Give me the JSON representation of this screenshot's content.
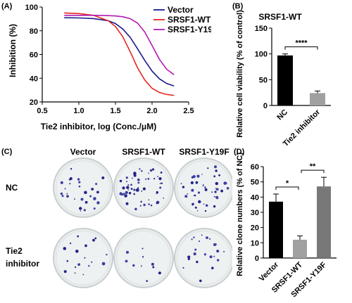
{
  "panels": {
    "A": {
      "label": "(A)",
      "chart_data": {
        "type": "line",
        "xlabel": "Tie2 inhibitor, log (Conc./μM)",
        "ylabel": "Inhibition (%)",
        "xlim": [
          0.5,
          2.5
        ],
        "ylim": [
          20,
          100
        ],
        "xticks": [
          0.5,
          1.0,
          1.5,
          2.0,
          2.5
        ],
        "xtick_labels": [
          "0.5",
          "1.0",
          "1.5",
          "2.0",
          "2.5"
        ],
        "yticks": [
          20,
          40,
          60,
          80,
          100
        ],
        "ytick_labels": [
          "20",
          "40",
          "60",
          "80",
          "100"
        ],
        "legend_position": "top-right",
        "series": [
          {
            "name": "Vector",
            "color": "#1a1a8c",
            "x": [
              0.8,
              1.0,
              1.2,
              1.4,
              1.5,
              1.6,
              1.7,
              1.8,
              1.9,
              2.0,
              2.1,
              2.2,
              2.3
            ],
            "y": [
              91,
              90.8,
              90.3,
              88.5,
              86,
              81.5,
              74.5,
              65,
              55,
              46,
              39.5,
              35.5,
              33.5
            ]
          },
          {
            "name": "SRSF1-WT",
            "color": "#e52620",
            "x": [
              0.8,
              1.0,
              1.2,
              1.4,
              1.5,
              1.6,
              1.7,
              1.8,
              1.9,
              2.0,
              2.1,
              2.2,
              2.3
            ],
            "y": [
              95,
              94.5,
              93,
              88.5,
              83.5,
              75,
              62.5,
              49,
              38.5,
              31.5,
              28,
              26.3,
              25.5
            ]
          },
          {
            "name": "SRSF1-Y19F",
            "color": "#b21ab2",
            "x": [
              0.8,
              1.0,
              1.2,
              1.4,
              1.5,
              1.6,
              1.7,
              1.8,
              1.9,
              2.0,
              2.1,
              2.2,
              2.3
            ],
            "y": [
              93,
              93,
              93,
              92.8,
              92.5,
              91.8,
              90.2,
              86.5,
              79,
              67.5,
              56,
              47.5,
              43
            ]
          }
        ]
      }
    },
    "B": {
      "label": "(B)",
      "chart_data": {
        "type": "bar",
        "title": "SRSF1-WT",
        "ylabel": "Relative cell viability (% of control)",
        "ylim": [
          0,
          150
        ],
        "yticks": [
          0,
          50,
          100,
          150
        ],
        "ytick_labels": [
          "0",
          "50",
          "100",
          "150"
        ],
        "categories": [
          "NC",
          "Tie2 inhibitor"
        ],
        "values": [
          97,
          24
        ],
        "errors": [
          3,
          4
        ],
        "colors": [
          "#000000",
          "#a0a0a0"
        ],
        "annotations": [
          {
            "between": [
              0,
              1
            ],
            "text": "****"
          }
        ]
      }
    },
    "C": {
      "label": "(C)",
      "columns": [
        "Vector",
        "SRSF1-WT",
        "SRSF1-Y19F"
      ],
      "rows": [
        {
          "line1": "NC",
          "line2": ""
        },
        {
          "line1": "Tie2",
          "line2": "inhibitor"
        }
      ]
    },
    "D": {
      "label": "(D)",
      "chart_data": {
        "type": "bar",
        "ylabel": "Relative clone numbers (% of NC)",
        "ylim": [
          0,
          60
        ],
        "yticks": [
          0,
          10,
          20,
          30,
          40,
          50,
          60
        ],
        "ytick_labels": [
          "0",
          "10",
          "20",
          "30",
          "40",
          "50",
          "60"
        ],
        "categories": [
          "Vector",
          "SRSF1-WT",
          "SRSF1-Y19F"
        ],
        "values": [
          37,
          12,
          47
        ],
        "errors": [
          5,
          2.5,
          6
        ],
        "colors": [
          "#000000",
          "#a0a0a0",
          "#787878"
        ],
        "annotations": [
          {
            "between": [
              0,
              1
            ],
            "text": "*"
          },
          {
            "between": [
              1,
              2
            ],
            "text": "**"
          }
        ]
      }
    }
  }
}
